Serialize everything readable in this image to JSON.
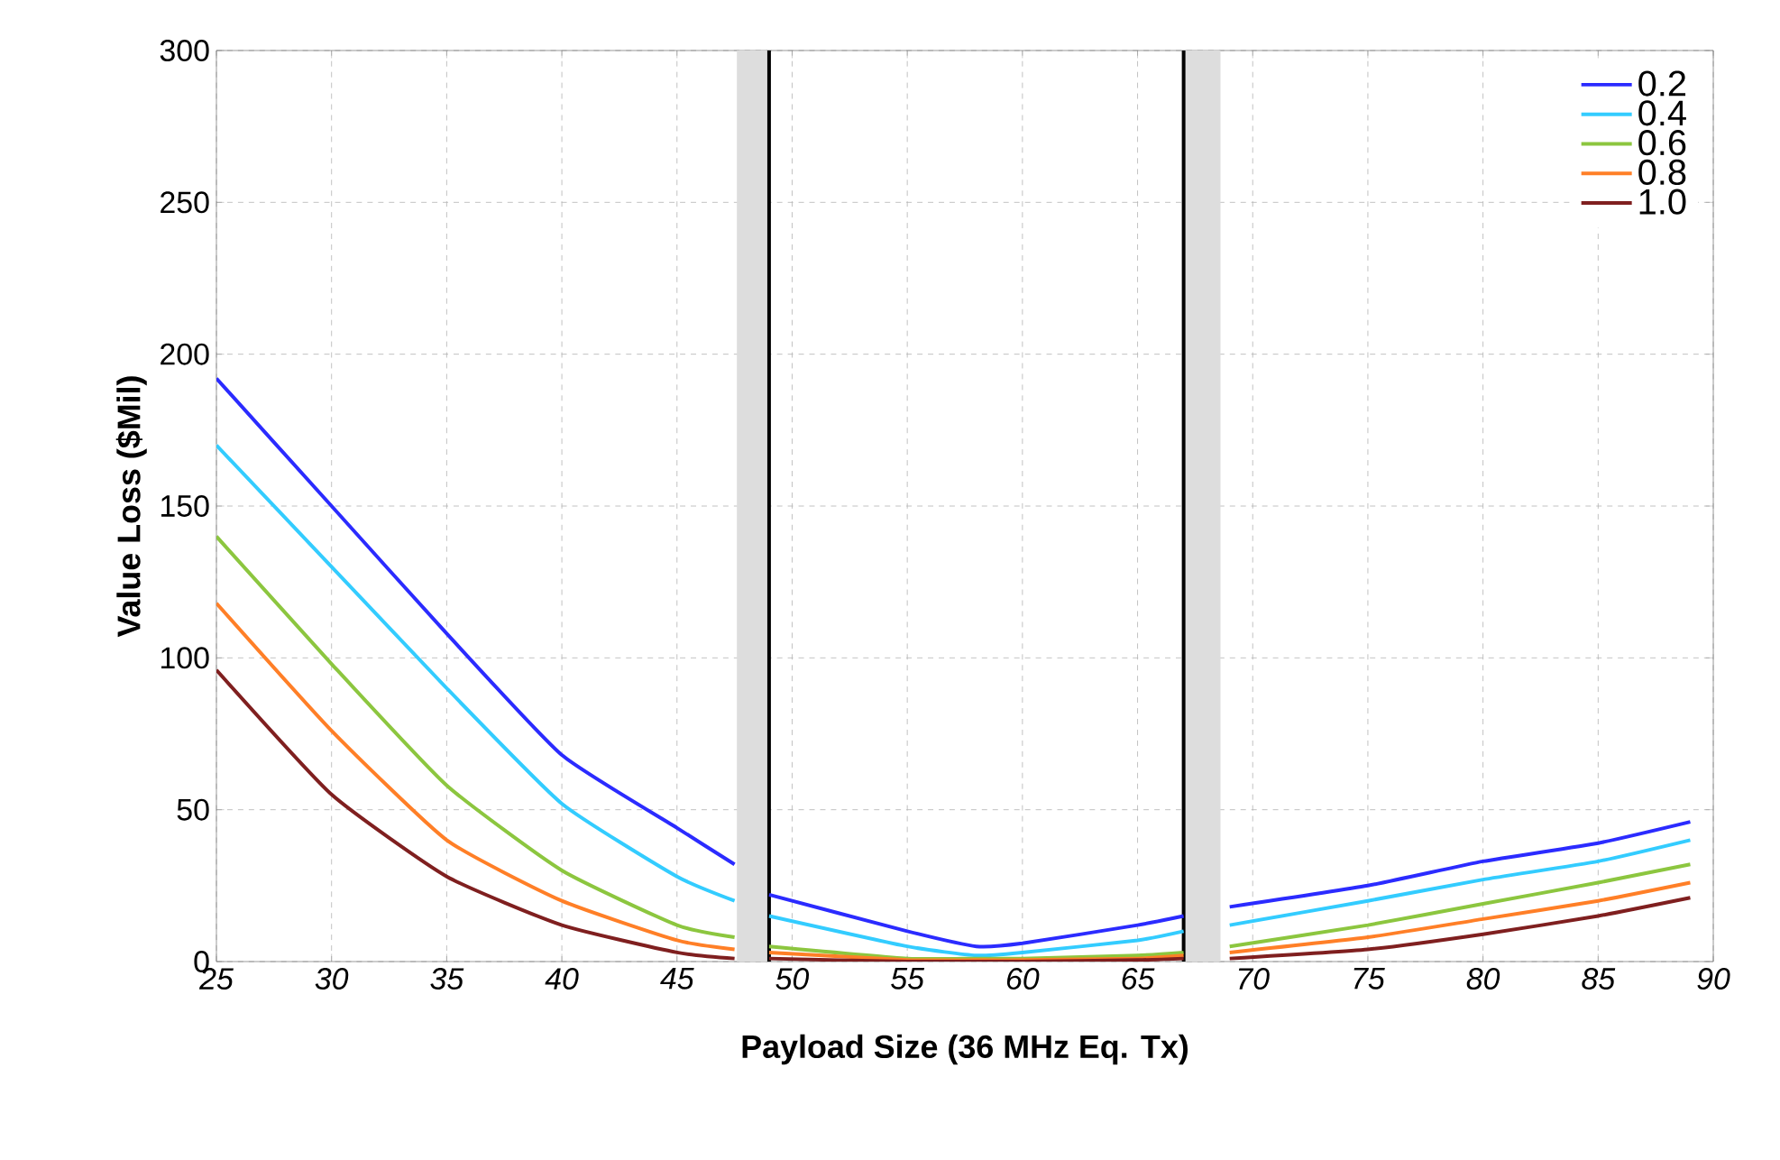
{
  "chart_data": {
    "type": "line",
    "xlabel": "Payload Size (36 MHz Eq. Tx)",
    "ylabel": "Value Loss ($Mil)",
    "x": [
      25,
      30,
      35,
      40,
      45,
      47.5,
      48.2,
      49,
      55,
      58,
      60,
      65,
      67,
      68,
      69,
      75,
      80,
      85,
      89
    ],
    "series": [
      {
        "name": "0.2",
        "color": "#2b2bff",
        "values": [
          192,
          150,
          108,
          68,
          44,
          32,
          null,
          22,
          10,
          5,
          6,
          12,
          15,
          null,
          18,
          25,
          33,
          39,
          46
        ]
      },
      {
        "name": "0.4",
        "color": "#33ccff",
        "values": [
          170,
          130,
          90,
          52,
          28,
          20,
          null,
          15,
          5,
          2,
          3,
          7,
          10,
          null,
          12,
          20,
          27,
          33,
          40
        ]
      },
      {
        "name": "0.6",
        "color": "#8cc63f",
        "values": [
          140,
          98,
          58,
          30,
          12,
          8,
          null,
          5,
          1,
          1,
          1,
          2,
          3,
          null,
          5,
          12,
          19,
          26,
          32
        ]
      },
      {
        "name": "0.8",
        "color": "#ff7f27",
        "values": [
          118,
          76,
          40,
          20,
          7,
          4,
          null,
          3,
          0.5,
          0.5,
          0.5,
          1,
          2,
          null,
          3,
          8,
          14,
          20,
          26
        ]
      },
      {
        "name": "1.0",
        "color": "#7f1f1f",
        "values": [
          96,
          55,
          28,
          12,
          3,
          1,
          null,
          1,
          0,
          0,
          0,
          0.5,
          1,
          null,
          1,
          4,
          9,
          15,
          21
        ]
      }
    ],
    "xlim": [
      25,
      90
    ],
    "xticks": [
      25,
      30,
      35,
      40,
      45,
      50,
      55,
      60,
      65,
      70,
      75,
      80,
      85,
      90
    ],
    "ylim": [
      0,
      300
    ],
    "yticks": [
      0,
      50,
      100,
      150,
      200,
      250,
      300
    ],
    "bands": [
      {
        "axis": "x",
        "from": 47.6,
        "to": 49,
        "color": "#dddddd"
      },
      {
        "axis": "x",
        "from": 67,
        "to": 68.6,
        "color": "#dddddd"
      }
    ],
    "ref_lines": [
      {
        "axis": "x",
        "value": 49,
        "color": "#000000"
      },
      {
        "axis": "x",
        "value": 67,
        "color": "#000000"
      }
    ],
    "grid": true,
    "legend": "top right",
    "marker": "none",
    "line_style": "solid"
  }
}
